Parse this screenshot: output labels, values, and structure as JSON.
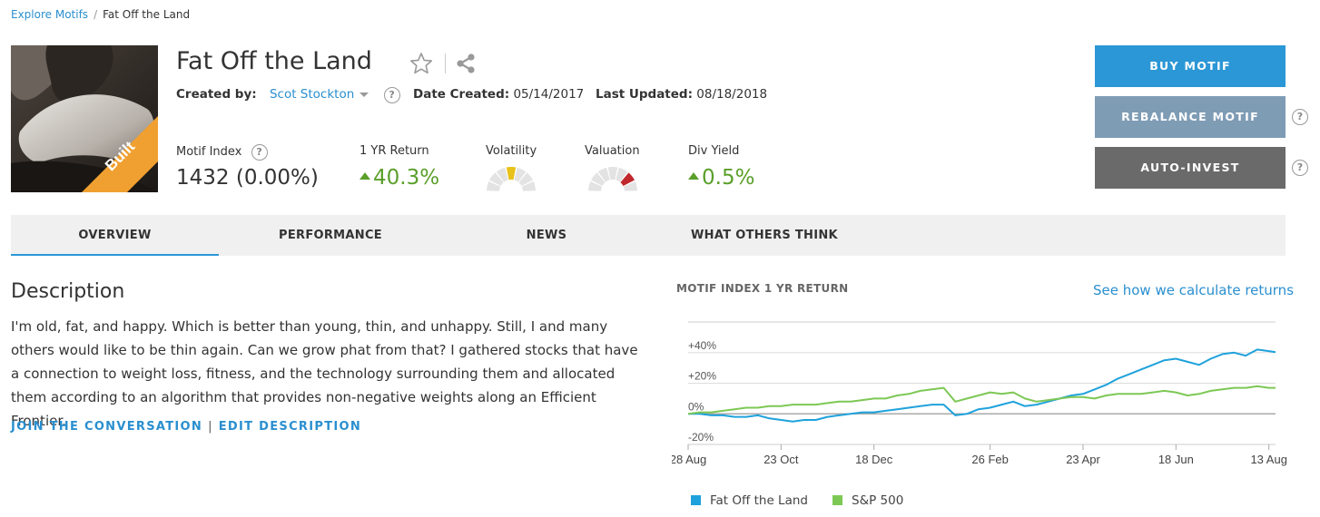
{
  "breadcrumb": {
    "parent": "Explore Motifs",
    "separator": "/",
    "current": "Fat Off the Land"
  },
  "thumbnail": {
    "badge": "Built",
    "badge_color": "#f0a030"
  },
  "header": {
    "title": "Fat Off the Land",
    "created_by_label": "Created by:",
    "creator": "Scot Stockton",
    "help_glyph": "?",
    "date_created_label": "Date Created:",
    "date_created": "05/14/2017",
    "last_updated_label": "Last Updated:",
    "last_updated": "08/18/2018"
  },
  "metrics": {
    "motif_index_label": "Motif Index",
    "motif_index_value": "1432 (0.00%)",
    "yr_return_label": "1 YR Return",
    "yr_return_value": "40.3%",
    "volatility_label": "Volatility",
    "volatility_level": 3,
    "volatility_color": "#e8c21a",
    "valuation_label": "Valuation",
    "valuation_level": 5,
    "valuation_color": "#c0282d",
    "div_yield_label": "Div Yield",
    "div_yield_value": "0.5%",
    "positive_color": "#5a9f2a"
  },
  "actions": {
    "buy": "BUY MOTIF",
    "rebalance": "REBALANCE MOTIF",
    "auto_invest": "AUTO-INVEST",
    "buy_color": "#2b97d6",
    "rebalance_color": "#7f9cb5",
    "auto_color": "#6a6a6a"
  },
  "tabs": [
    {
      "label": "OVERVIEW",
      "active": true
    },
    {
      "label": "PERFORMANCE",
      "active": false
    },
    {
      "label": "NEWS",
      "active": false
    },
    {
      "label": "WHAT OTHERS THINK",
      "active": false
    }
  ],
  "description": {
    "title": "Description",
    "body": "I'm old, fat, and happy. Which is better than young, thin, and unhappy. Still, I and many others would like to be thin again. Can we grow phat from that? I gathered stocks that have a connection to weight loss, fitness, and the technology surrounding them and allocated them according to an algorithm that provides non-negative weights along an Efficient Frontier.",
    "join_link": "JOIN THE CONVERSATION",
    "pipe": "|",
    "edit_link": "EDIT DESCRIPTION"
  },
  "chart_header": {
    "title": "MOTIF INDEX 1 YR RETURN",
    "link": "See how we calculate returns"
  },
  "chart_data": {
    "type": "line",
    "title": "MOTIF INDEX 1 YR RETURN",
    "y_unit": "%",
    "ylim": [
      -20,
      60
    ],
    "y_ticks": [
      "+40%",
      "+20%",
      "0%",
      "-20%"
    ],
    "y_tick_values": [
      40,
      20,
      0,
      -20
    ],
    "x_start": "2017-08-28",
    "x_end": "2018-08-17",
    "x_ticks": [
      {
        "label": "28 Aug",
        "date": "2017-08-28"
      },
      {
        "label": "23 Oct",
        "date": "2017-10-23"
      },
      {
        "label": "18 Dec",
        "date": "2017-12-18"
      },
      {
        "label": "26 Feb",
        "date": "2018-02-26"
      },
      {
        "label": "23 Apr",
        "date": "2018-04-23"
      },
      {
        "label": "18 Jun",
        "date": "2018-06-18"
      },
      {
        "label": "13 Aug",
        "date": "2018-08-13"
      }
    ],
    "grid": true,
    "legend_position": "bottom",
    "series": [
      {
        "name": "Fat Off the Land",
        "color": "#1fa2dc",
        "points": [
          [
            "2017-08-28",
            0
          ],
          [
            "2017-09-04",
            0
          ],
          [
            "2017-09-11",
            -1
          ],
          [
            "2017-09-18",
            -1
          ],
          [
            "2017-09-25",
            -2
          ],
          [
            "2017-10-02",
            -2
          ],
          [
            "2017-10-09",
            -1
          ],
          [
            "2017-10-16",
            -3
          ],
          [
            "2017-10-23",
            -4
          ],
          [
            "2017-10-30",
            -5
          ],
          [
            "2017-11-06",
            -4
          ],
          [
            "2017-11-13",
            -4
          ],
          [
            "2017-11-20",
            -2
          ],
          [
            "2017-11-27",
            -1
          ],
          [
            "2017-12-04",
            0
          ],
          [
            "2017-12-11",
            1
          ],
          [
            "2017-12-18",
            1
          ],
          [
            "2017-12-25",
            2
          ],
          [
            "2018-01-01",
            3
          ],
          [
            "2018-01-08",
            4
          ],
          [
            "2018-01-15",
            5
          ],
          [
            "2018-01-22",
            6
          ],
          [
            "2018-01-29",
            6
          ],
          [
            "2018-02-05",
            -1
          ],
          [
            "2018-02-12",
            0
          ],
          [
            "2018-02-19",
            3
          ],
          [
            "2018-02-26",
            4
          ],
          [
            "2018-03-05",
            6
          ],
          [
            "2018-03-12",
            8
          ],
          [
            "2018-03-19",
            5
          ],
          [
            "2018-03-26",
            6
          ],
          [
            "2018-04-02",
            8
          ],
          [
            "2018-04-09",
            10
          ],
          [
            "2018-04-16",
            12
          ],
          [
            "2018-04-23",
            13
          ],
          [
            "2018-04-30",
            16
          ],
          [
            "2018-05-07",
            19
          ],
          [
            "2018-05-14",
            23
          ],
          [
            "2018-05-21",
            26
          ],
          [
            "2018-05-28",
            29
          ],
          [
            "2018-06-04",
            32
          ],
          [
            "2018-06-11",
            35
          ],
          [
            "2018-06-18",
            36
          ],
          [
            "2018-06-25",
            34
          ],
          [
            "2018-07-02",
            32
          ],
          [
            "2018-07-09",
            36
          ],
          [
            "2018-07-16",
            39
          ],
          [
            "2018-07-23",
            40
          ],
          [
            "2018-07-30",
            38
          ],
          [
            "2018-08-06",
            42
          ],
          [
            "2018-08-13",
            41
          ],
          [
            "2018-08-17",
            40.3
          ]
        ]
      },
      {
        "name": "S&P 500",
        "color": "#7dc855",
        "points": [
          [
            "2017-08-28",
            0
          ],
          [
            "2017-09-04",
            1
          ],
          [
            "2017-09-11",
            1
          ],
          [
            "2017-09-18",
            2
          ],
          [
            "2017-09-25",
            3
          ],
          [
            "2017-10-02",
            4
          ],
          [
            "2017-10-09",
            4
          ],
          [
            "2017-10-16",
            5
          ],
          [
            "2017-10-23",
            5
          ],
          [
            "2017-10-30",
            6
          ],
          [
            "2017-11-06",
            6
          ],
          [
            "2017-11-13",
            6
          ],
          [
            "2017-11-20",
            7
          ],
          [
            "2017-11-27",
            8
          ],
          [
            "2017-12-04",
            8
          ],
          [
            "2017-12-11",
            9
          ],
          [
            "2017-12-18",
            10
          ],
          [
            "2017-12-25",
            10
          ],
          [
            "2018-01-01",
            12
          ],
          [
            "2018-01-08",
            13
          ],
          [
            "2018-01-15",
            15
          ],
          [
            "2018-01-22",
            16
          ],
          [
            "2018-01-29",
            17
          ],
          [
            "2018-02-05",
            8
          ],
          [
            "2018-02-12",
            10
          ],
          [
            "2018-02-19",
            12
          ],
          [
            "2018-02-26",
            14
          ],
          [
            "2018-03-05",
            13
          ],
          [
            "2018-03-12",
            14
          ],
          [
            "2018-03-19",
            10
          ],
          [
            "2018-03-26",
            8
          ],
          [
            "2018-04-02",
            9
          ],
          [
            "2018-04-09",
            10
          ],
          [
            "2018-04-16",
            11
          ],
          [
            "2018-04-23",
            11
          ],
          [
            "2018-04-30",
            10
          ],
          [
            "2018-05-07",
            12
          ],
          [
            "2018-05-14",
            13
          ],
          [
            "2018-05-21",
            13
          ],
          [
            "2018-05-28",
            13
          ],
          [
            "2018-06-04",
            14
          ],
          [
            "2018-06-11",
            15
          ],
          [
            "2018-06-18",
            14
          ],
          [
            "2018-06-25",
            12
          ],
          [
            "2018-07-02",
            13
          ],
          [
            "2018-07-09",
            15
          ],
          [
            "2018-07-16",
            16
          ],
          [
            "2018-07-23",
            17
          ],
          [
            "2018-07-30",
            17
          ],
          [
            "2018-08-06",
            18
          ],
          [
            "2018-08-13",
            17
          ],
          [
            "2018-08-17",
            17
          ]
        ]
      }
    ]
  }
}
